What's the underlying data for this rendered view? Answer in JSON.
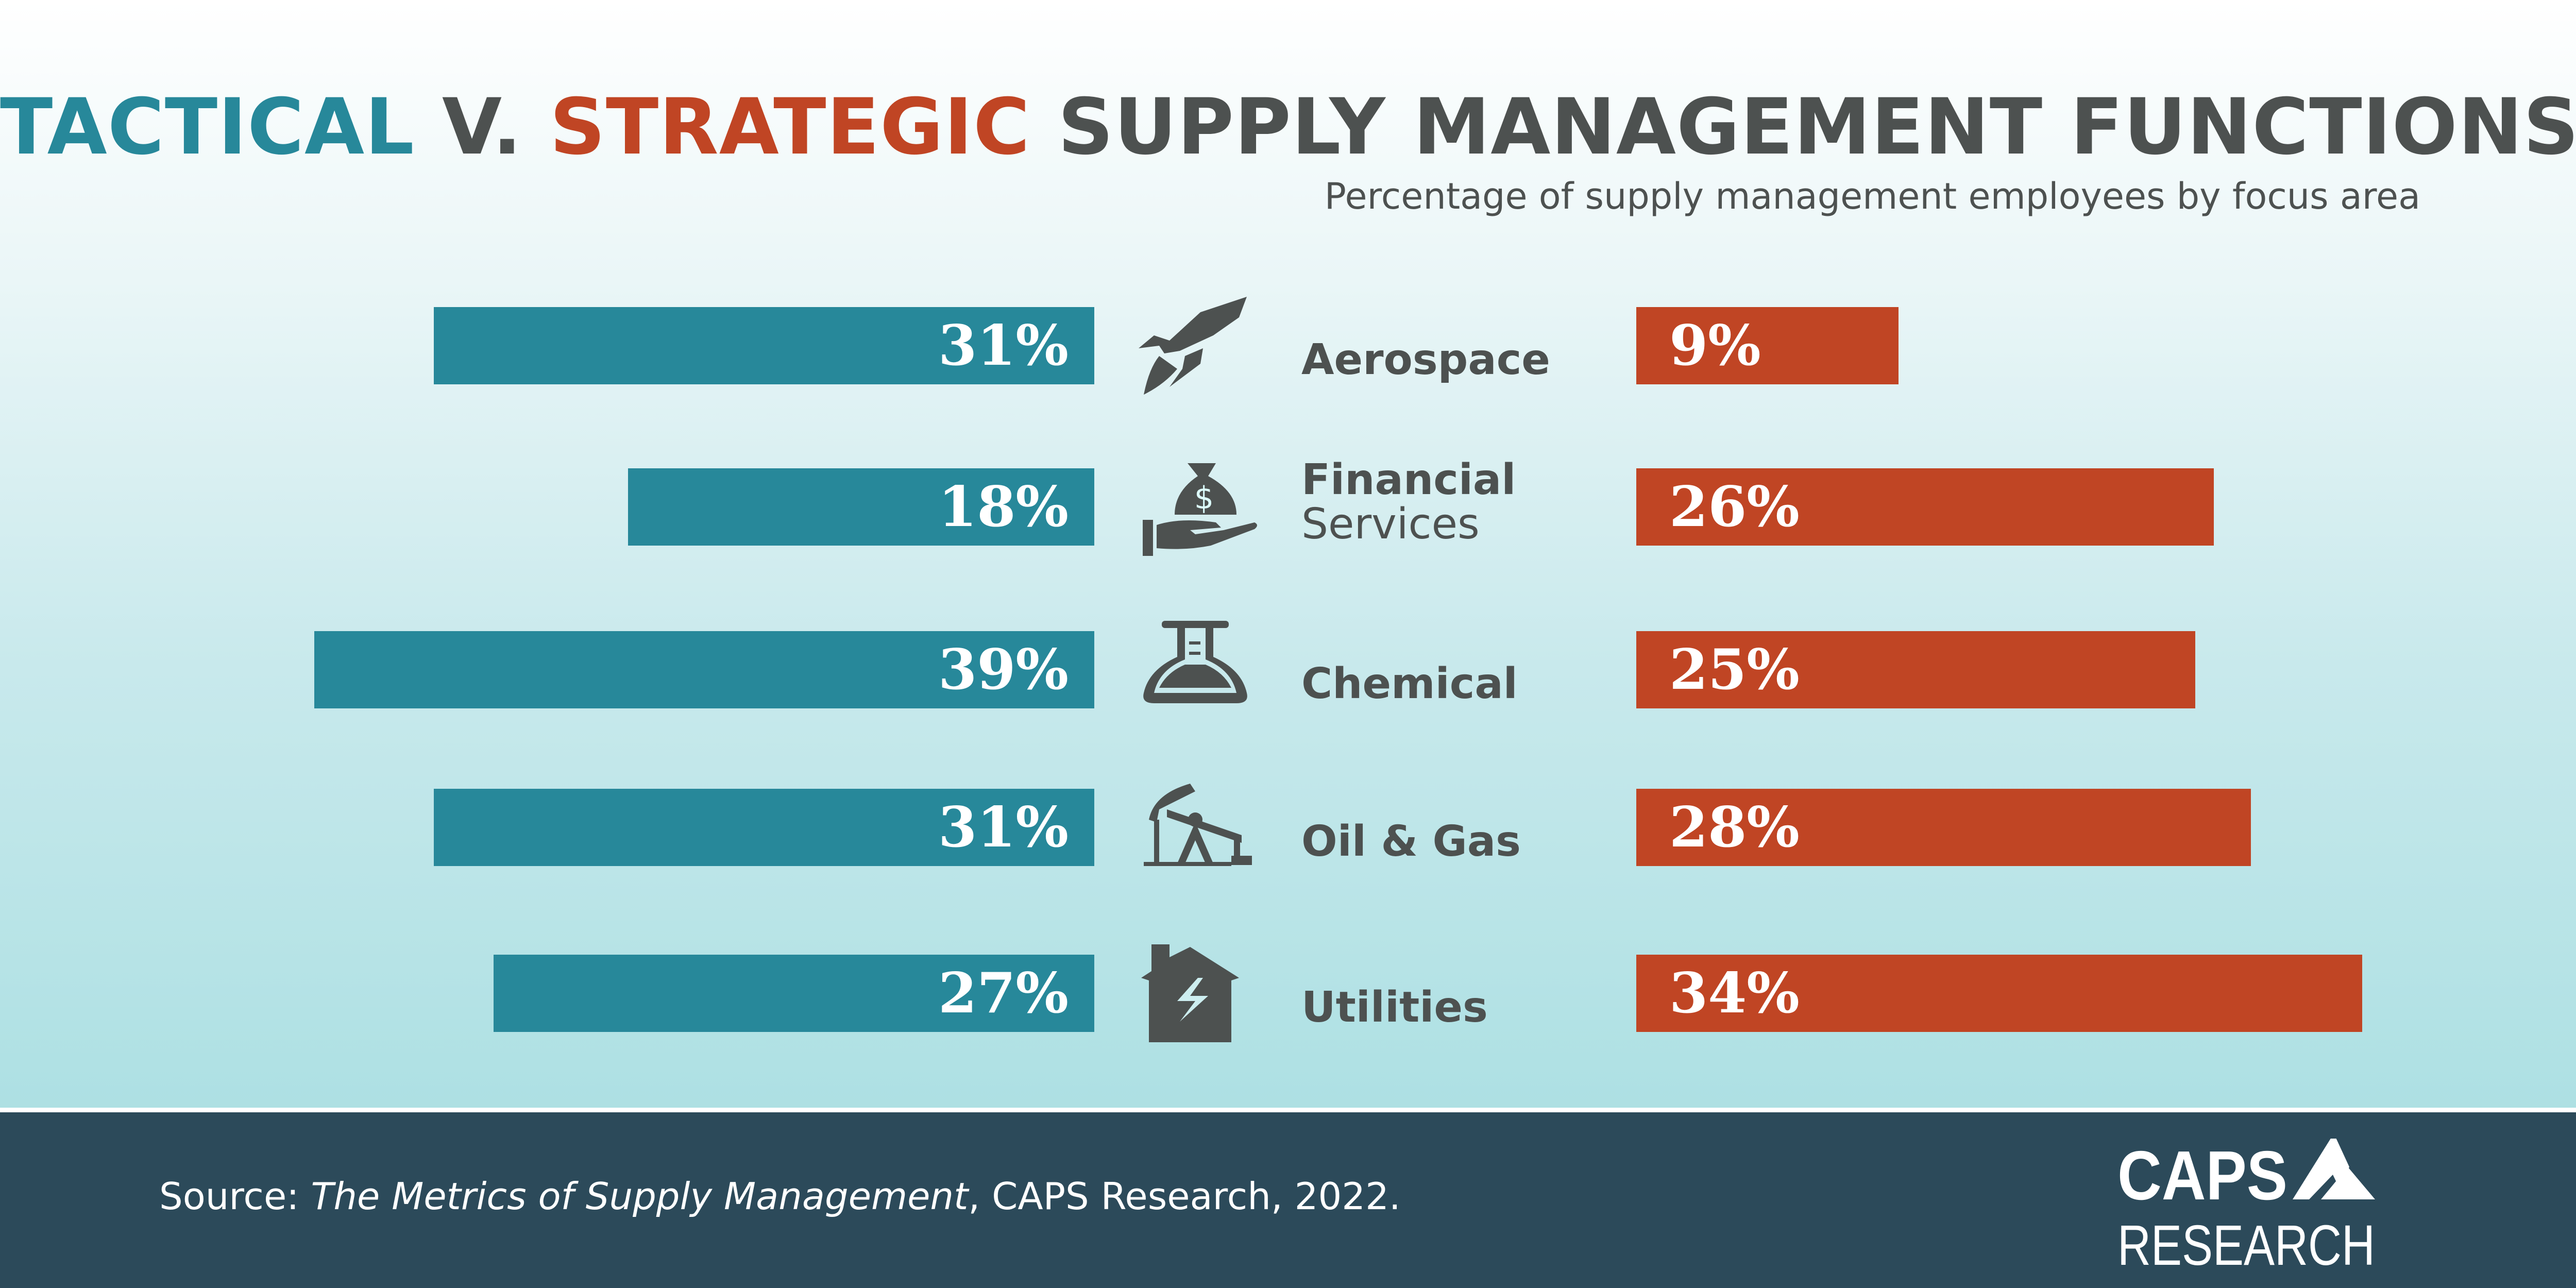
{
  "header": {
    "title_tactical": "TACTICAL",
    "title_v": " V. ",
    "title_strategic": "STRATEGIC",
    "title_rest": " SUPPLY MANAGEMENT FUNCTIONS",
    "subtitle": "Percentage of supply management employees by focus area"
  },
  "colors": {
    "tactical": "#27889a",
    "strategic": "#c04524",
    "text": "#4d5150",
    "footer": "#2c4a5a"
  },
  "chart_data": {
    "type": "bar",
    "orientation": "horizontal-diverging",
    "title": "TACTICAL V. STRATEGIC SUPPLY MANAGEMENT FUNCTIONS",
    "subtitle": "Percentage of supply management employees by focus area",
    "categories": [
      {
        "line1": "Aerospace",
        "line2": "",
        "icon": "rocket-icon"
      },
      {
        "line1": "Financial",
        "line2": "Services",
        "icon": "money-bag-hand-icon"
      },
      {
        "line1": "Chemical",
        "line2": "",
        "icon": "flask-icon"
      },
      {
        "line1": "Oil & Gas",
        "line2": "",
        "icon": "oil-pump-icon"
      },
      {
        "line1": "Utilities",
        "line2": "",
        "icon": "house-lightning-icon"
      }
    ],
    "series": [
      {
        "name": "TACTICAL",
        "values": [
          31,
          18,
          39,
          31,
          27
        ],
        "labels": [
          "31%",
          "18%",
          "39%",
          "31%",
          "27%"
        ]
      },
      {
        "name": "STRATEGIC",
        "values": [
          9,
          26,
          25,
          28,
          34
        ],
        "labels": [
          "9%",
          "26%",
          "25%",
          "28%",
          "34%"
        ]
      }
    ]
  },
  "footer": {
    "source_prefix": "Source: ",
    "source_title": "The Metrics of Supply Management",
    "source_suffix": ", CAPS Research, 2022.",
    "logo_text": "CAPS RESEARCH"
  }
}
